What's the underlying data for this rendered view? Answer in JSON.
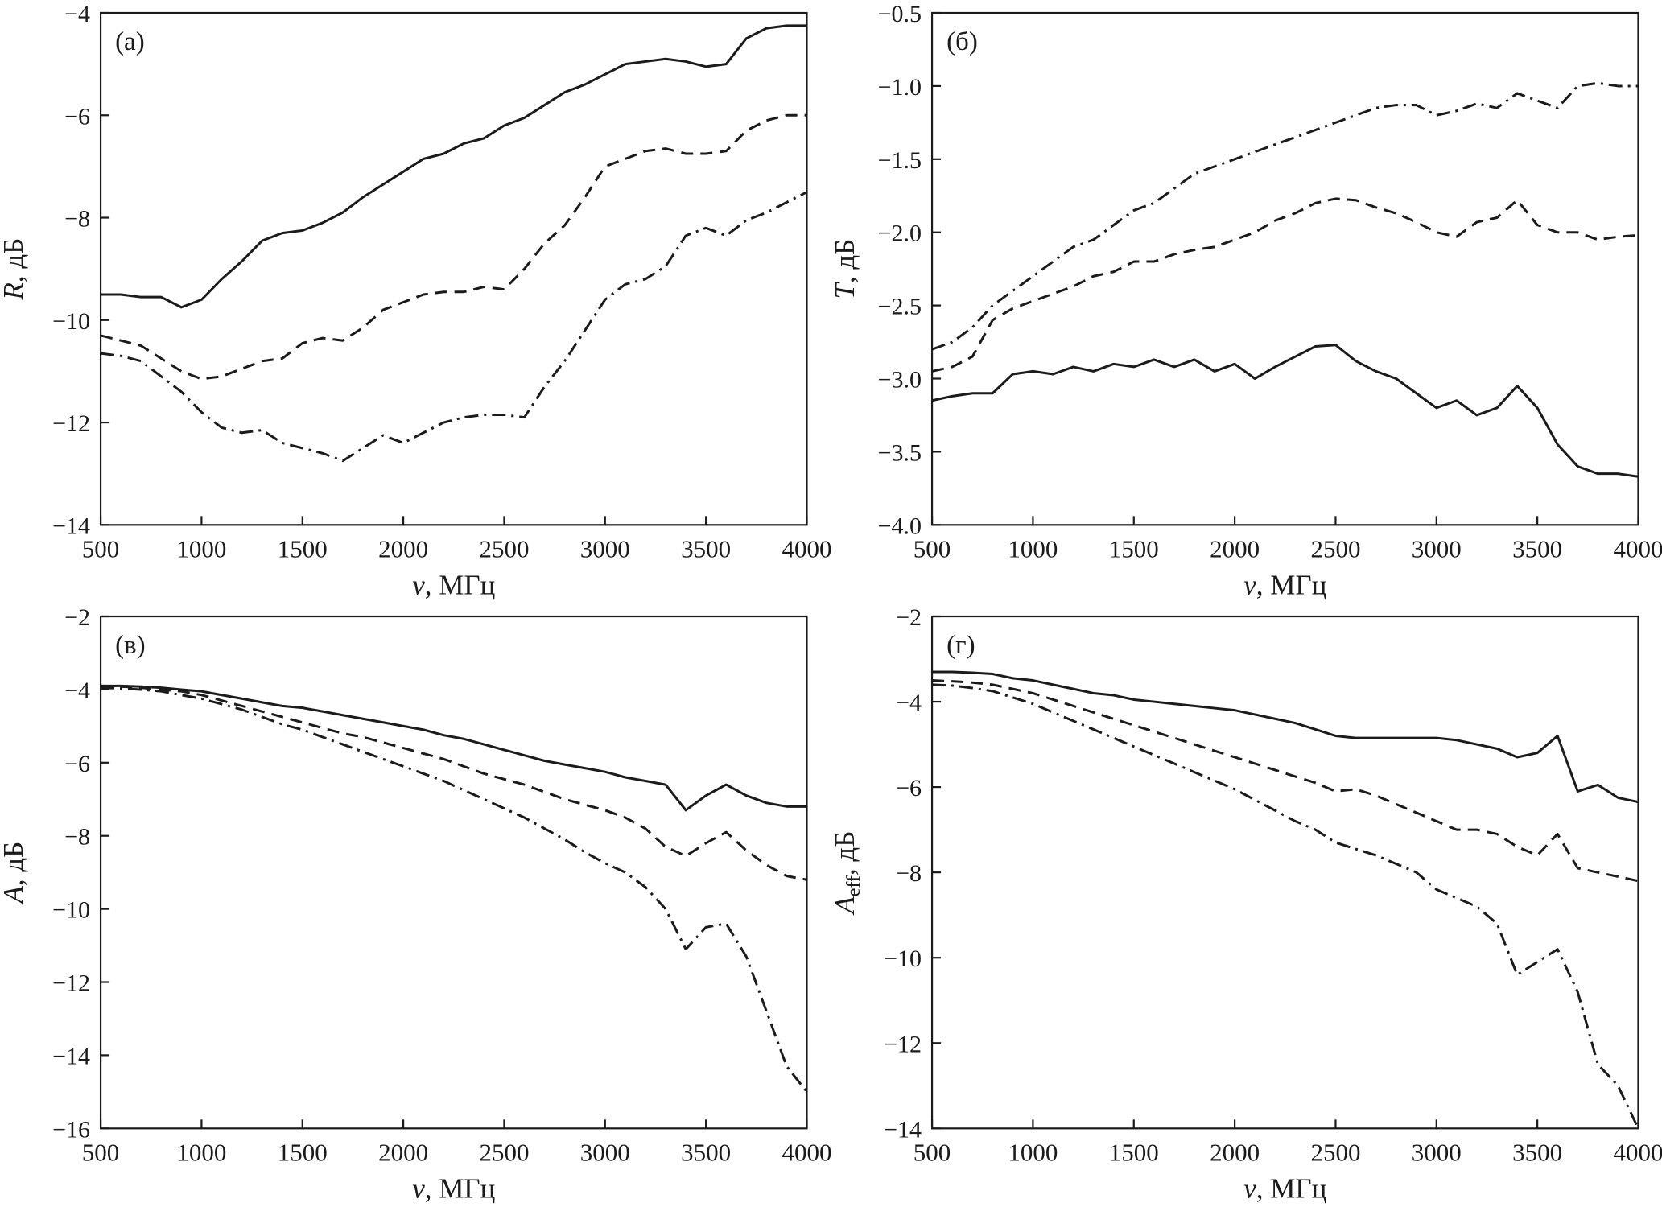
{
  "page": {
    "background": "#ffffff",
    "line_color": "#1b1b1b"
  },
  "chart_data": [
    {
      "type": "line",
      "panel_label": "(а)",
      "xlabel": {
        "variable": "ν",
        "rest": ", МГц"
      },
      "ylabel": {
        "variable": "R",
        "subscript": "",
        "rest": ", дБ"
      },
      "xlim": [
        500,
        4000
      ],
      "ylim": [
        -14,
        -4
      ],
      "xticks": [
        500,
        1000,
        1500,
        2000,
        2500,
        3000,
        3500,
        4000
      ],
      "xtick_labels": [
        "500",
        "1000",
        "1500",
        "2000",
        "2500",
        "3000",
        "3500",
        "4000"
      ],
      "yticks": [
        -4,
        -6,
        -8,
        -10,
        -12,
        -14
      ],
      "ytick_labels": [
        "−4",
        "−6",
        "−8",
        "−10",
        "−12",
        "−14"
      ],
      "grid": false,
      "legend": "none",
      "x_start": 500,
      "x_step": 100,
      "series": [
        {
          "name": "solid-line",
          "style": "solid",
          "values": [
            -9.5,
            -9.5,
            -9.55,
            -9.55,
            -9.75,
            -9.6,
            -9.2,
            -8.85,
            -8.45,
            -8.3,
            -8.25,
            -8.1,
            -7.9,
            -7.6,
            -7.35,
            -7.1,
            -6.85,
            -6.75,
            -6.55,
            -6.45,
            -6.2,
            -6.05,
            -5.8,
            -5.55,
            -5.4,
            -5.2,
            -5.0,
            -4.95,
            -4.9,
            -4.95,
            -5.05,
            -5.0,
            -4.5,
            -4.3,
            -4.25,
            -4.25
          ]
        },
        {
          "name": "dashed-line",
          "style": "dashed",
          "values": [
            -10.3,
            -10.4,
            -10.5,
            -10.75,
            -11.0,
            -11.15,
            -11.1,
            -10.95,
            -10.8,
            -10.75,
            -10.45,
            -10.35,
            -10.4,
            -10.15,
            -9.8,
            -9.65,
            -9.5,
            -9.45,
            -9.45,
            -9.35,
            -9.4,
            -9.0,
            -8.5,
            -8.15,
            -7.6,
            -7.0,
            -6.85,
            -6.7,
            -6.65,
            -6.75,
            -6.75,
            -6.7,
            -6.3,
            -6.1,
            -6.0,
            -6.0
          ]
        },
        {
          "name": "dash-dot-line",
          "style": "dashdot",
          "values": [
            -10.65,
            -10.7,
            -10.8,
            -11.1,
            -11.4,
            -11.8,
            -12.1,
            -12.2,
            -12.15,
            -12.4,
            -12.5,
            -12.6,
            -12.75,
            -12.5,
            -12.25,
            -12.4,
            -12.2,
            -12.0,
            -11.9,
            -11.85,
            -11.85,
            -11.9,
            -11.3,
            -10.8,
            -10.2,
            -9.6,
            -9.3,
            -9.2,
            -8.95,
            -8.35,
            -8.2,
            -8.35,
            -8.05,
            -7.9,
            -7.7,
            -7.5
          ]
        }
      ]
    },
    {
      "type": "line",
      "panel_label": "(б)",
      "xlabel": {
        "variable": "ν",
        "rest": ", МГц"
      },
      "ylabel": {
        "variable": "T",
        "subscript": "",
        "rest": ", дБ"
      },
      "xlim": [
        500,
        4000
      ],
      "ylim": [
        -4,
        -0.5
      ],
      "xticks": [
        500,
        1000,
        1500,
        2000,
        2500,
        3000,
        3500,
        4000
      ],
      "xtick_labels": [
        "500",
        "1000",
        "1500",
        "2000",
        "2500",
        "3000",
        "3500",
        "4000"
      ],
      "yticks": [
        -0.5,
        -1.0,
        -1.5,
        -2.0,
        -2.5,
        -3.0,
        -3.5,
        -4.0
      ],
      "ytick_labels": [
        "−0.5",
        "−1.0",
        "−1.5",
        "−2.0",
        "−2.5",
        "−3.0",
        "−3.5",
        "−4.0"
      ],
      "grid": false,
      "legend": "none",
      "x_start": 500,
      "x_step": 100,
      "series": [
        {
          "name": "dash-dot-line",
          "style": "dashdot",
          "values": [
            -2.8,
            -2.75,
            -2.65,
            -2.5,
            -2.4,
            -2.3,
            -2.2,
            -2.1,
            -2.05,
            -1.95,
            -1.85,
            -1.8,
            -1.7,
            -1.6,
            -1.55,
            -1.5,
            -1.45,
            -1.4,
            -1.35,
            -1.3,
            -1.25,
            -1.2,
            -1.15,
            -1.13,
            -1.13,
            -1.2,
            -1.17,
            -1.12,
            -1.15,
            -1.05,
            -1.1,
            -1.15,
            -1.0,
            -0.98,
            -1.0,
            -1.0
          ]
        },
        {
          "name": "dashed-line",
          "style": "dashed",
          "values": [
            -2.95,
            -2.92,
            -2.85,
            -2.6,
            -2.52,
            -2.47,
            -2.42,
            -2.37,
            -2.3,
            -2.27,
            -2.2,
            -2.2,
            -2.15,
            -2.12,
            -2.1,
            -2.05,
            -2.0,
            -1.92,
            -1.87,
            -1.8,
            -1.77,
            -1.78,
            -1.83,
            -1.87,
            -1.93,
            -2.0,
            -2.03,
            -1.93,
            -1.9,
            -1.78,
            -1.95,
            -2.0,
            -2.0,
            -2.05,
            -2.03,
            -2.02
          ]
        },
        {
          "name": "solid-line",
          "style": "solid",
          "values": [
            -3.15,
            -3.12,
            -3.1,
            -3.1,
            -2.97,
            -2.95,
            -2.97,
            -2.92,
            -2.95,
            -2.9,
            -2.92,
            -2.87,
            -2.92,
            -2.87,
            -2.95,
            -2.9,
            -3.0,
            -2.92,
            -2.85,
            -2.78,
            -2.77,
            -2.88,
            -2.95,
            -3.0,
            -3.1,
            -3.2,
            -3.15,
            -3.25,
            -3.2,
            -3.05,
            -3.2,
            -3.45,
            -3.6,
            -3.65,
            -3.65,
            -3.67
          ]
        }
      ]
    },
    {
      "type": "line",
      "panel_label": "(в)",
      "xlabel": {
        "variable": "ν",
        "rest": ", МГц"
      },
      "ylabel": {
        "variable": "A",
        "subscript": "",
        "rest": ", дБ"
      },
      "xlim": [
        500,
        4000
      ],
      "ylim": [
        -16,
        -2
      ],
      "xticks": [
        500,
        1000,
        1500,
        2000,
        2500,
        3000,
        3500,
        4000
      ],
      "xtick_labels": [
        "500",
        "1000",
        "1500",
        "2000",
        "2500",
        "3000",
        "3500",
        "4000"
      ],
      "yticks": [
        -2,
        -4,
        -6,
        -8,
        -10,
        -12,
        -14,
        -16
      ],
      "ytick_labels": [
        "−2",
        "−4",
        "−6",
        "−8",
        "−10",
        "−12",
        "−14",
        "−16"
      ],
      "grid": false,
      "legend": "none",
      "x_start": 500,
      "x_step": 100,
      "series": [
        {
          "name": "solid-line",
          "style": "solid",
          "values": [
            -3.9,
            -3.9,
            -3.92,
            -3.95,
            -4.0,
            -4.05,
            -4.15,
            -4.25,
            -4.35,
            -4.45,
            -4.5,
            -4.6,
            -4.7,
            -4.8,
            -4.9,
            -5.0,
            -5.1,
            -5.25,
            -5.35,
            -5.5,
            -5.65,
            -5.8,
            -5.95,
            -6.05,
            -6.15,
            -6.25,
            -6.4,
            -6.5,
            -6.6,
            -7.3,
            -6.9,
            -6.6,
            -6.9,
            -7.1,
            -7.2,
            -7.2
          ]
        },
        {
          "name": "dashed-line",
          "style": "dashed",
          "values": [
            -3.9,
            -3.92,
            -3.95,
            -4.0,
            -4.05,
            -4.15,
            -4.3,
            -4.45,
            -4.6,
            -4.75,
            -4.9,
            -5.05,
            -5.2,
            -5.3,
            -5.45,
            -5.6,
            -5.75,
            -5.9,
            -6.1,
            -6.3,
            -6.45,
            -6.6,
            -6.8,
            -7.0,
            -7.15,
            -7.3,
            -7.5,
            -7.8,
            -8.3,
            -8.55,
            -8.2,
            -7.9,
            -8.4,
            -8.8,
            -9.1,
            -9.2
          ]
        },
        {
          "name": "dash-dot-line",
          "style": "dashdot",
          "values": [
            -3.95,
            -3.97,
            -4.0,
            -4.05,
            -4.15,
            -4.25,
            -4.4,
            -4.55,
            -4.75,
            -4.95,
            -5.1,
            -5.3,
            -5.5,
            -5.7,
            -5.9,
            -6.1,
            -6.3,
            -6.5,
            -6.75,
            -7.0,
            -7.25,
            -7.5,
            -7.8,
            -8.1,
            -8.45,
            -8.75,
            -9.0,
            -9.4,
            -10.0,
            -11.1,
            -10.5,
            -10.4,
            -11.3,
            -12.8,
            -14.3,
            -15.0
          ]
        }
      ]
    },
    {
      "type": "line",
      "panel_label": "(г)",
      "xlabel": {
        "variable": "ν",
        "rest": ", МГц"
      },
      "ylabel": {
        "variable": "A",
        "subscript": "eff",
        "rest": ", дБ"
      },
      "xlim": [
        500,
        4000
      ],
      "ylim": [
        -14,
        -2
      ],
      "xticks": [
        500,
        1000,
        1500,
        2000,
        2500,
        3000,
        3500,
        4000
      ],
      "xtick_labels": [
        "500",
        "1000",
        "1500",
        "2000",
        "2500",
        "3000",
        "3500",
        "4000"
      ],
      "yticks": [
        -2,
        -4,
        -6,
        -8,
        -10,
        -12,
        -14
      ],
      "ytick_labels": [
        "−2",
        "−4",
        "−6",
        "−8",
        "−10",
        "−12",
        "−14"
      ],
      "grid": false,
      "legend": "none",
      "x_start": 500,
      "x_step": 100,
      "series": [
        {
          "name": "solid-line",
          "style": "solid",
          "values": [
            -3.3,
            -3.3,
            -3.32,
            -3.35,
            -3.45,
            -3.5,
            -3.6,
            -3.7,
            -3.8,
            -3.85,
            -3.95,
            -4.0,
            -4.05,
            -4.1,
            -4.15,
            -4.2,
            -4.3,
            -4.4,
            -4.5,
            -4.65,
            -4.8,
            -4.85,
            -4.85,
            -4.85,
            -4.85,
            -4.85,
            -4.9,
            -5.0,
            -5.1,
            -5.3,
            -5.2,
            -4.8,
            -6.1,
            -5.95,
            -6.25,
            -6.35
          ]
        },
        {
          "name": "dashed-line",
          "style": "dashed",
          "values": [
            -3.5,
            -3.52,
            -3.55,
            -3.6,
            -3.7,
            -3.8,
            -3.95,
            -4.1,
            -4.25,
            -4.4,
            -4.55,
            -4.7,
            -4.85,
            -5.0,
            -5.15,
            -5.3,
            -5.45,
            -5.6,
            -5.75,
            -5.9,
            -6.1,
            -6.05,
            -6.2,
            -6.4,
            -6.6,
            -6.8,
            -7.0,
            -7.0,
            -7.1,
            -7.4,
            -7.6,
            -7.1,
            -7.9,
            -8.0,
            -8.1,
            -8.2
          ]
        },
        {
          "name": "dash-dot-line",
          "style": "dashdot",
          "values": [
            -3.6,
            -3.62,
            -3.68,
            -3.75,
            -3.9,
            -4.05,
            -4.25,
            -4.45,
            -4.65,
            -4.85,
            -5.05,
            -5.25,
            -5.45,
            -5.65,
            -5.85,
            -6.05,
            -6.3,
            -6.55,
            -6.8,
            -7.0,
            -7.3,
            -7.45,
            -7.6,
            -7.8,
            -8.0,
            -8.4,
            -8.6,
            -8.8,
            -9.2,
            -10.4,
            -10.1,
            -9.8,
            -10.8,
            -12.5,
            -13.0,
            -14.0
          ]
        }
      ]
    }
  ]
}
